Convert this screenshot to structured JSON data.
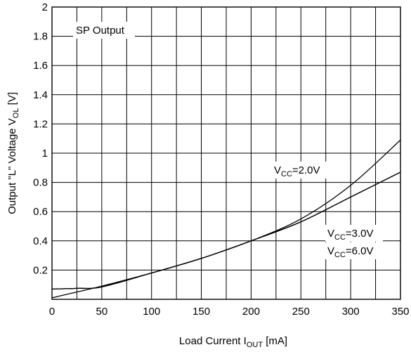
{
  "chart_data": {
    "type": "line",
    "title": "",
    "annotation": "SP Output",
    "xlabel": {
      "main": "Load Current I",
      "sub": "OUT",
      "unit": " [mA]"
    },
    "ylabel": {
      "main": "Output \"L\" Voltage V",
      "sub": "OL",
      "unit": " [V]"
    },
    "xlim": [
      0,
      350
    ],
    "ylim": [
      0,
      2
    ],
    "x_ticks": [
      0,
      50,
      100,
      150,
      200,
      250,
      300,
      350
    ],
    "y_ticks": [
      0.2,
      0.4,
      0.6,
      0.8,
      1,
      1.2,
      1.4,
      1.6,
      1.8,
      2
    ],
    "x_grid_step": 25,
    "y_grid_step": 0.2,
    "grid": true,
    "series": [
      {
        "name": {
          "main": "V",
          "sub": "CC",
          "rest": "=2.0V"
        },
        "x": [
          0,
          25,
          50,
          100,
          150,
          200,
          250,
          300,
          350
        ],
        "y": [
          0.01,
          0.05,
          0.09,
          0.18,
          0.28,
          0.4,
          0.55,
          0.78,
          1.09
        ]
      },
      {
        "name": {
          "main": "V",
          "sub": "CC",
          "rest": "=3.0V"
        },
        "x": [
          0,
          25,
          50,
          100,
          150,
          200,
          250,
          300,
          350
        ],
        "y": [
          0.07,
          0.075,
          0.085,
          0.18,
          0.28,
          0.4,
          0.53,
          0.7,
          0.87
        ]
      },
      {
        "name": {
          "main": "V",
          "sub": "CC",
          "rest": "=6.0V"
        },
        "x": [
          0,
          25,
          50,
          100,
          150,
          200,
          250,
          300,
          350
        ],
        "y": [
          0.07,
          0.075,
          0.085,
          0.18,
          0.28,
          0.4,
          0.53,
          0.7,
          0.87
        ]
      }
    ]
  }
}
